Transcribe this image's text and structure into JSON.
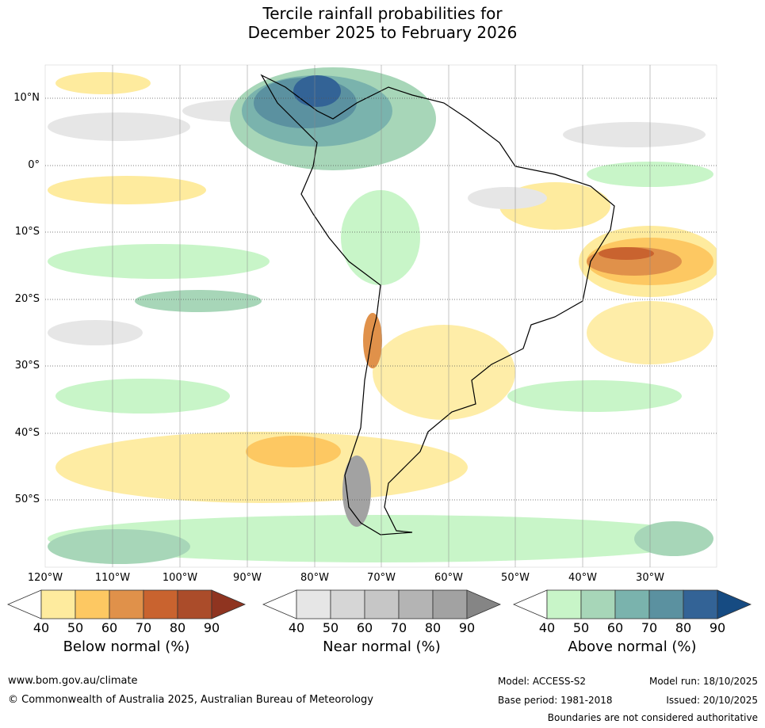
{
  "title": {
    "line1": "Tercile rainfall probabilities for",
    "line2": "December 2025 to February 2026"
  },
  "map": {
    "lat_labels": [
      "10°N",
      "0°",
      "10°S",
      "20°S",
      "30°S",
      "40°S",
      "50°S"
    ],
    "lon_labels": [
      "120°W",
      "110°W",
      "100°W",
      "90°W",
      "80°W",
      "70°W",
      "60°W",
      "50°W",
      "40°W",
      "30°W"
    ]
  },
  "colorbars": [
    {
      "label": "Below normal (%)",
      "ticks": [
        "40",
        "50",
        "60",
        "70",
        "80",
        "90"
      ],
      "colors": [
        "#ffffff",
        "#feeb9e",
        "#fdc862",
        "#e0914a",
        "#c9632f",
        "#ab4c2a",
        "#8f3420"
      ]
    },
    {
      "label": "Near normal (%)",
      "ticks": [
        "40",
        "50",
        "60",
        "70",
        "80",
        "90"
      ],
      "colors": [
        "#ffffff",
        "#e6e6e6",
        "#d6d6d6",
        "#c6c6c6",
        "#b4b4b4",
        "#a2a2a2",
        "#858585"
      ]
    },
    {
      "label": "Above normal (%)",
      "ticks": [
        "40",
        "50",
        "60",
        "70",
        "80",
        "90"
      ],
      "colors": [
        "#ffffff",
        "#c8f5c8",
        "#a7d6b8",
        "#7ab3ad",
        "#5b91a0",
        "#336396",
        "#164b82"
      ]
    }
  ],
  "footer": {
    "website": "www.bom.gov.au/climate",
    "copyright": "© Commonwealth of Australia 2025, Australian Bureau of Meteorology",
    "model": "Model: ACCESS-S2",
    "base_period": "Base period: 1981-2018",
    "model_run": "Model run: 18/10/2025",
    "issued": "Issued: 20/10/2025",
    "disclaimer": "Boundaries are not considered authoritative"
  }
}
